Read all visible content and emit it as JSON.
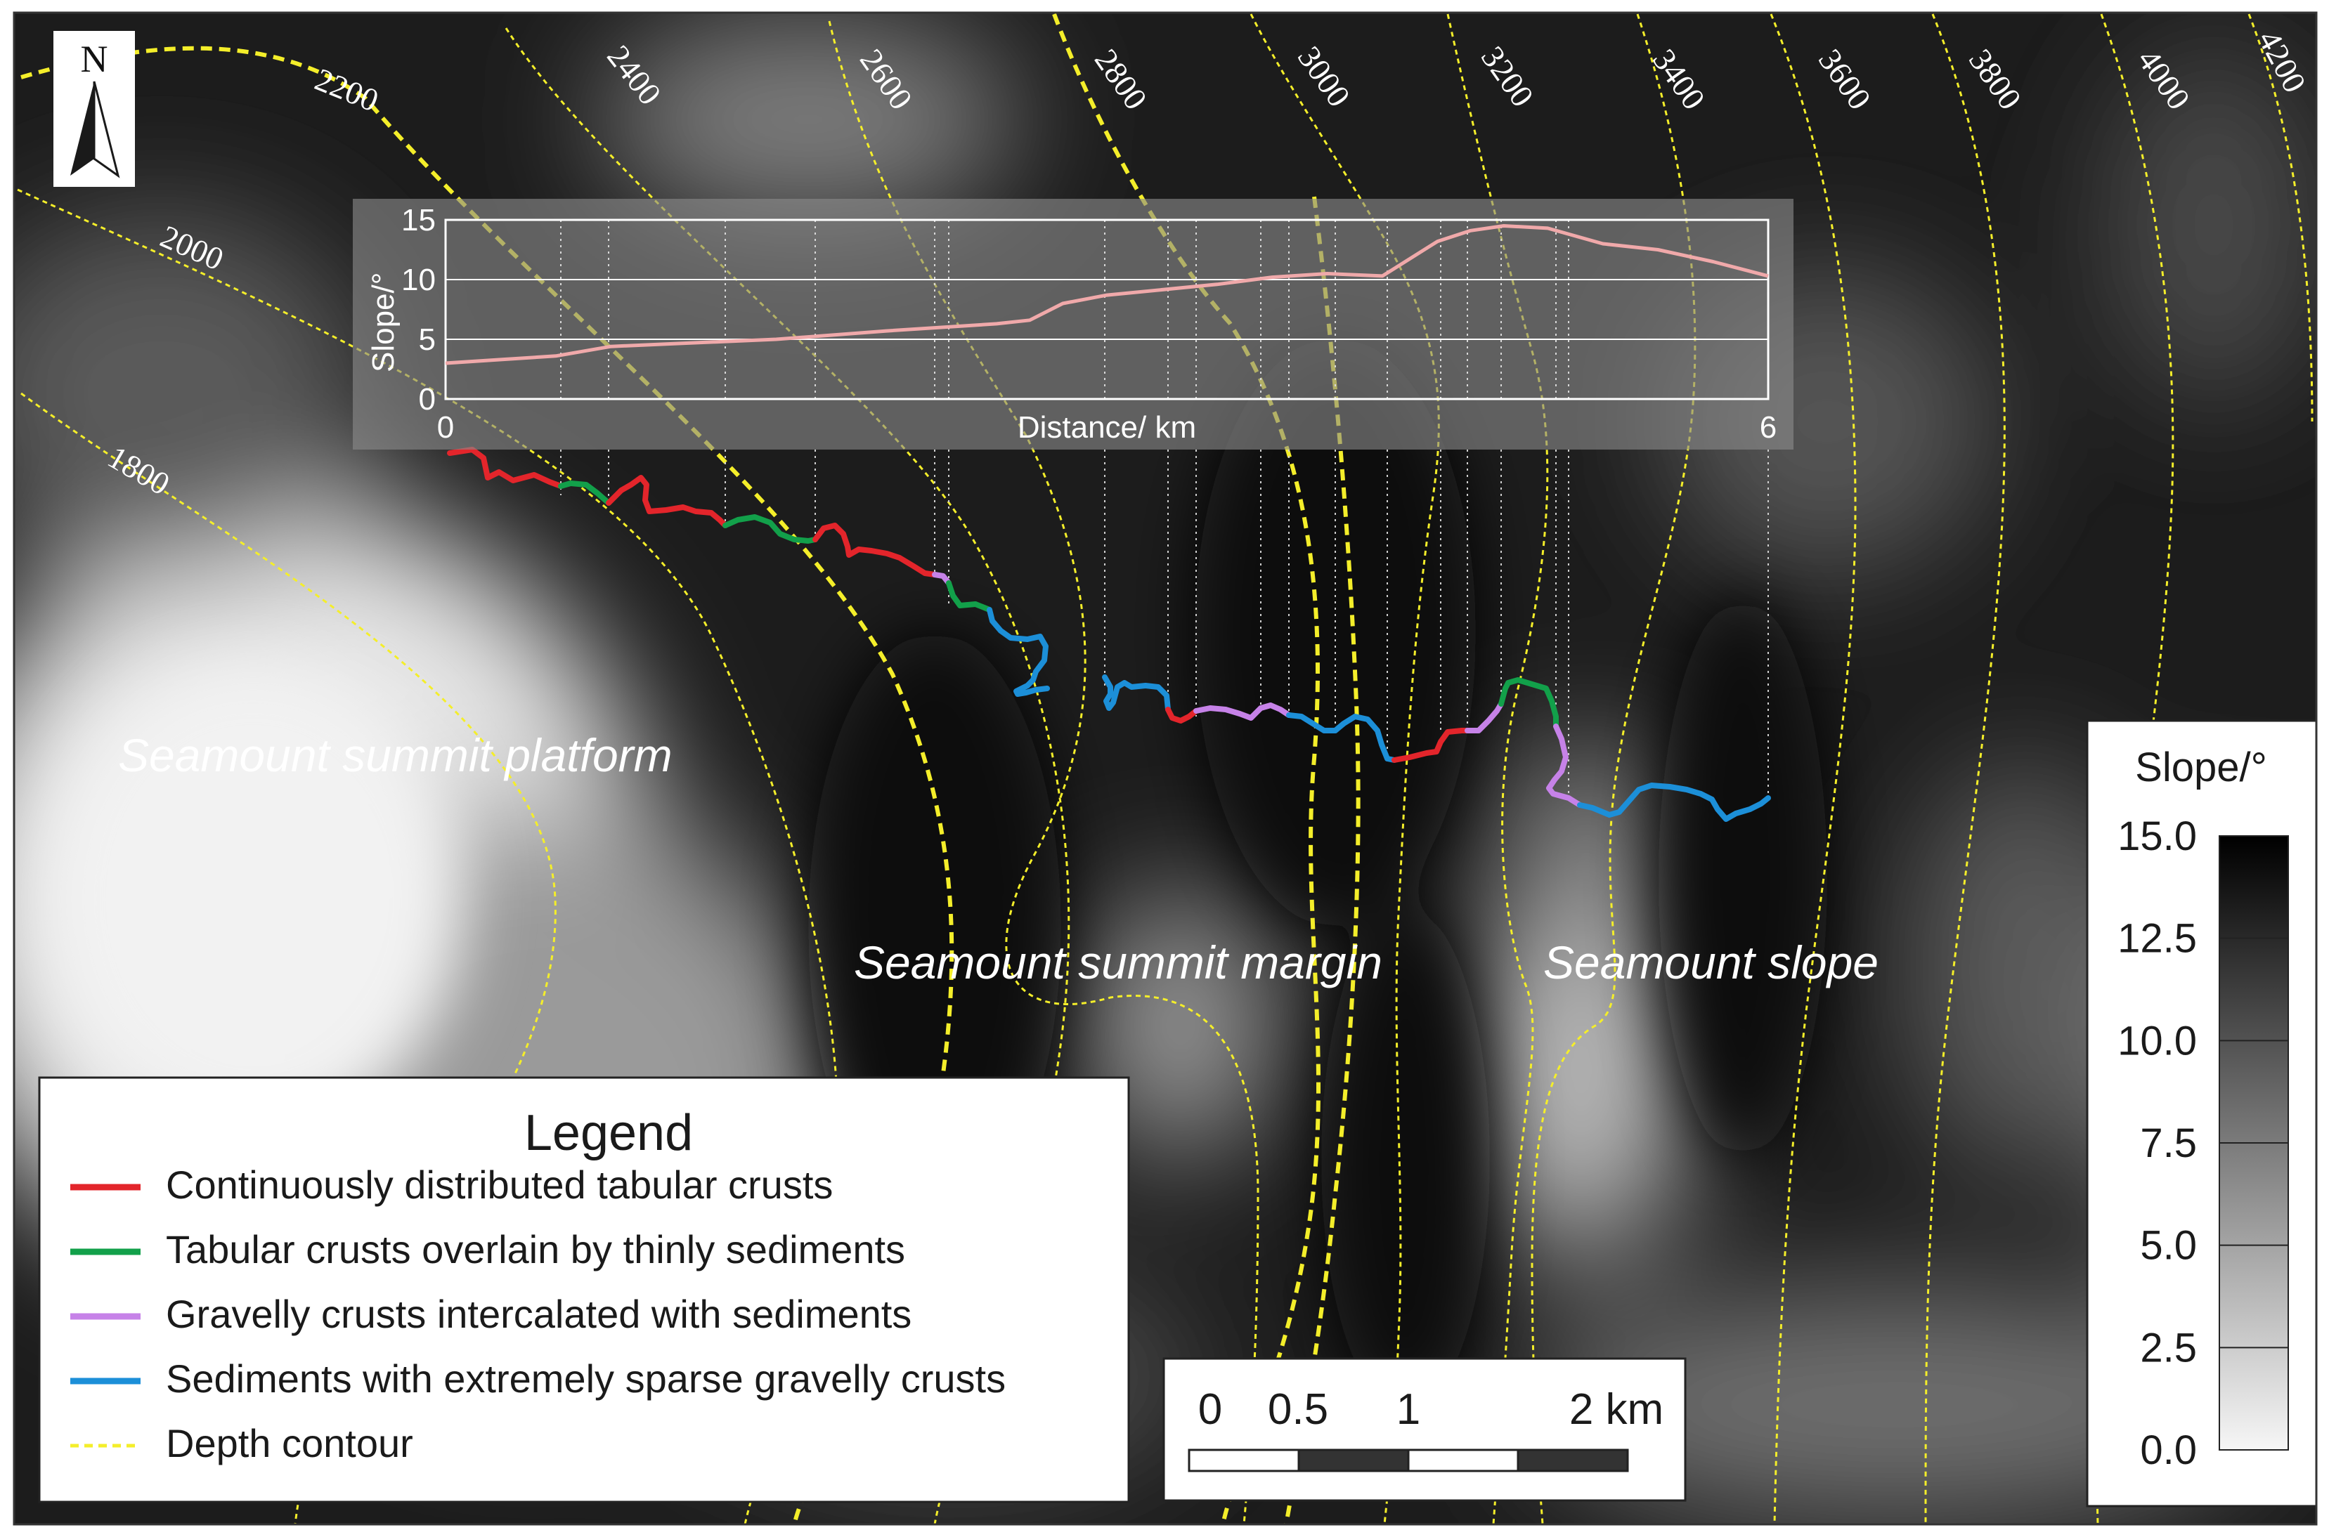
{
  "colors": {
    "crust_continuous": "#e3252b",
    "crust_thin_sediment": "#12a04a",
    "gravelly_intercalated": "#c682e8",
    "sediment_sparse": "#1c8fd8",
    "depth_contour": "#f4ee2a",
    "profile_line": "#f0a9aa"
  },
  "north_arrow": {
    "label": "N",
    "icon": "north-arrow-icon"
  },
  "contour_labels": [
    "2200",
    "2400",
    "2600",
    "2800",
    "3000",
    "3200",
    "3400",
    "3600",
    "3800",
    "4000",
    "4200",
    "2000",
    "1800"
  ],
  "region_labels": {
    "platform": "Seamount summit platform",
    "margin": "Seamount summit margin",
    "slope": "Seamount slope"
  },
  "chart_data": {
    "type": "line",
    "xlabel": "Distance/ km",
    "ylabel": "Slope/°",
    "xlim": [
      0,
      6
    ],
    "ylim": [
      0,
      15
    ],
    "x_ticks": [
      "0",
      "6"
    ],
    "y_ticks": [
      "0",
      "5",
      "10",
      "15"
    ],
    "grid": true,
    "series": [
      {
        "x": [
          0,
          0.25,
          0.5,
          0.75,
          1.0,
          1.5,
          2.0,
          2.5,
          2.65,
          2.8,
          3.0,
          3.5,
          3.75,
          4.0,
          4.25,
          4.5,
          4.65,
          4.8,
          5.0,
          5.25,
          5.5,
          5.75,
          6.0
        ],
        "y": [
          3.0,
          3.3,
          3.6,
          4.4,
          4.6,
          5.0,
          5.7,
          6.3,
          6.6,
          8.0,
          8.7,
          9.6,
          10.2,
          10.5,
          10.3,
          13.2,
          14.1,
          14.5,
          14.3,
          13.0,
          12.5,
          11.5,
          10.3
        ]
      }
    ]
  },
  "legend": {
    "title": "Legend",
    "items": [
      {
        "label": "Continuously distributed tabular crusts",
        "color": "#e3252b",
        "style": "solid"
      },
      {
        "label": "Tabular crusts overlain by thinly sediments",
        "color": "#12a04a",
        "style": "solid"
      },
      {
        "label": "Gravelly crusts intercalated with sediments",
        "color": "#c682e8",
        "style": "solid"
      },
      {
        "label": "Sediments with extremely sparse gravelly crusts",
        "color": "#1c8fd8",
        "style": "solid"
      },
      {
        "label": "Depth  contour",
        "color": "#f4ee2a",
        "style": "dashed"
      }
    ]
  },
  "scale_bar": {
    "labels": [
      "0",
      "0.5",
      "1",
      "2 km"
    ]
  },
  "colorbar": {
    "title": "Slope/°",
    "ticks": [
      "15.0",
      "12.5",
      "10.0",
      "7.5",
      "5.0",
      "2.5",
      "0.0"
    ]
  }
}
